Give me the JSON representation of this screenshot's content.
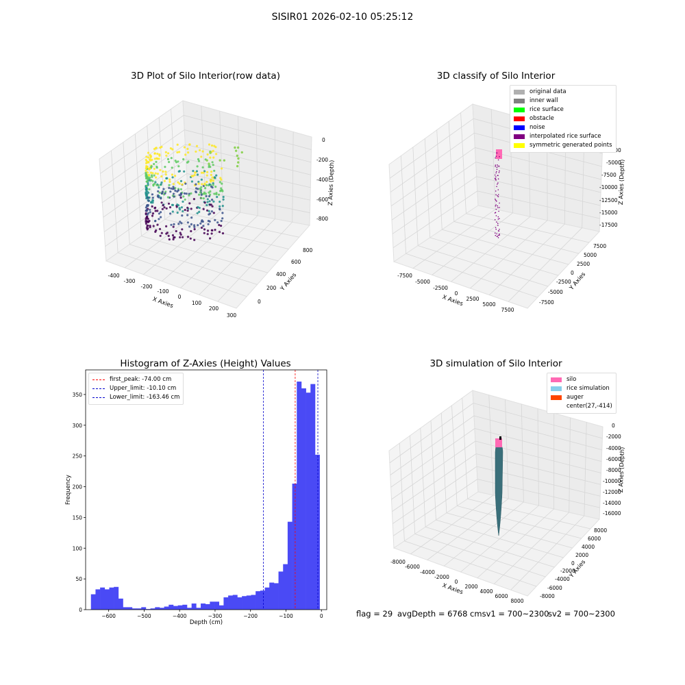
{
  "suptitle": "SISIR01 2026-02-10 05:25:12",
  "colors": {
    "hist_bar": "#4a4af5",
    "peak_line": "#ff0000",
    "limit_line": "#0000cc",
    "silo": "#ff69b4",
    "rice": "#87ceeb",
    "auger": "#ff4500",
    "sim_body": "#3a6f7a"
  },
  "panel1": {
    "title": "3D Plot of Silo Interior(row data)",
    "x_label": "X Axies",
    "y_label": "Y Axies",
    "z_label": "Z Axies (Depth)",
    "x_ticks": [
      "-400",
      "-300",
      "-200",
      "-100",
      "0",
      "100",
      "200",
      "300"
    ],
    "y_ticks": [
      "0",
      "200",
      "400",
      "600",
      "800"
    ],
    "z_ticks": [
      "0",
      "-200",
      "-400",
      "-600",
      "-800"
    ]
  },
  "panel2": {
    "title": "3D classify of Silo Interior",
    "x_label": "X Axies",
    "y_label": "Y Axies",
    "z_label": "Z Axies (Depth)",
    "x_ticks": [
      "-7500",
      "-5000",
      "-2500",
      "0",
      "2500",
      "5000",
      "7500"
    ],
    "y_ticks": [
      "-7500",
      "-5000",
      "-2500",
      "0",
      "2500",
      "5000",
      "7500"
    ],
    "z_ticks": [
      "0",
      "-2500",
      "-5000",
      "-7500",
      "-10000",
      "-12500",
      "-15000",
      "-17500"
    ],
    "legend": [
      {
        "label": "original data",
        "color": "#b0b0b0"
      },
      {
        "label": "inner wall",
        "color": "#808080"
      },
      {
        "label": "rice surface",
        "color": "#00ff00"
      },
      {
        "label": "obstacle",
        "color": "#ff0000"
      },
      {
        "label": "noise",
        "color": "#0000ff"
      },
      {
        "label": "interpolated rice surface",
        "color": "#800080"
      },
      {
        "label": "symmetric generated points",
        "color": "#ffff00"
      }
    ]
  },
  "panel3": {
    "title": "3D simulation of Silo Interior",
    "x_label": "X Axies",
    "y_label": "Y Axies",
    "z_label": "Z Axies (Depth)",
    "x_ticks": [
      "-8000",
      "-6000",
      "-4000",
      "-2000",
      "0",
      "2000",
      "4000",
      "6000",
      "8000"
    ],
    "y_ticks": [
      "-8000",
      "-6000",
      "-4000",
      "-2000",
      "0",
      "2000",
      "4000",
      "6000",
      "8000"
    ],
    "z_ticks": [
      "0",
      "-2000",
      "-4000",
      "-6000",
      "-8000",
      "-10000",
      "-12000",
      "-14000",
      "-16000"
    ],
    "legend": [
      {
        "label": "silo",
        "color": "#ff69b4"
      },
      {
        "label": "rice simulation",
        "color": "#87ceeb"
      },
      {
        "label": "auger",
        "color": "#ff4500"
      },
      {
        "label": "center(27,-414)",
        "color": ""
      }
    ]
  },
  "chart_data": {
    "type": "bar",
    "title": "Histogram of Z-Axies (Height) Values",
    "xlabel": "Depth (cm)",
    "ylabel": "Frequency",
    "xlim": [
      -665,
      15
    ],
    "ylim": [
      0,
      390
    ],
    "x_ticks": [
      -600,
      -500,
      -400,
      -300,
      -200,
      -100,
      0
    ],
    "y_ticks": [
      0,
      50,
      100,
      150,
      200,
      250,
      300,
      350
    ],
    "bin_start": -650,
    "bin_width": 12.9,
    "values": [
      25,
      33,
      36,
      33,
      36,
      37,
      18,
      4,
      4,
      2,
      2,
      4,
      1,
      2,
      4,
      3,
      5,
      8,
      6,
      7,
      8,
      3,
      10,
      3,
      10,
      9,
      13,
      13,
      7,
      20,
      23,
      24,
      20,
      22,
      23,
      24,
      30,
      31,
      36,
      44,
      43,
      62,
      74,
      143,
      205,
      371,
      360,
      353,
      367,
      252
    ],
    "vlines": [
      {
        "label": "first_peak: -74.00 cm",
        "x": -74.0,
        "kind": "peak"
      },
      {
        "label": "Upper_limit: -10.10 cm",
        "x": -10.1,
        "kind": "limit"
      },
      {
        "label": "Lower_limit: -163.46 cm",
        "x": -163.46,
        "kind": "limit"
      }
    ],
    "legend_position": "upper left"
  },
  "footer": {
    "flag": "flag = 29",
    "avg": "avgDepth = 6768 cmsv1 = 700~2300",
    "sv2": "sv2 = 700~2300"
  }
}
